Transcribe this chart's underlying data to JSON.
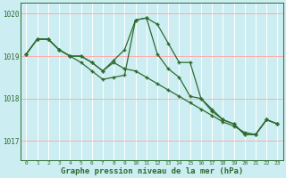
{
  "bg_color": "#cceef2",
  "grid_color_v": "#ffffff",
  "grid_color_h": "#ffaaaa",
  "line_color": "#2d6a2d",
  "marker_color": "#2d6a2d",
  "x": [
    0,
    1,
    2,
    3,
    4,
    5,
    6,
    7,
    8,
    9,
    10,
    11,
    12,
    13,
    14,
    15,
    16,
    17,
    18,
    19,
    20,
    21,
    22,
    23
  ],
  "series1": [
    1019.05,
    1019.4,
    1019.4,
    1019.15,
    1019.0,
    1019.0,
    1018.85,
    1018.65,
    1018.9,
    1019.15,
    1019.85,
    1019.9,
    1019.75,
    1019.3,
    1018.85,
    1018.85,
    1018.0,
    1017.75,
    1017.5,
    1017.4,
    1017.15,
    1017.15,
    1017.5,
    1017.4
  ],
  "series2": [
    1019.05,
    1019.4,
    1019.4,
    1019.15,
    1019.0,
    1018.85,
    1018.65,
    1018.45,
    1018.5,
    1018.55,
    1019.85,
    1019.9,
    1019.05,
    1018.7,
    1018.5,
    1018.05,
    1018.0,
    1017.7,
    1017.5,
    1017.4,
    1017.15,
    1017.15,
    1017.5,
    1017.4
  ],
  "series3": [
    1019.05,
    1019.4,
    1019.4,
    1019.15,
    1019.0,
    1019.0,
    1018.85,
    1018.65,
    1018.85,
    1018.7,
    1018.65,
    1018.5,
    1018.35,
    1018.2,
    1018.05,
    1017.9,
    1017.75,
    1017.6,
    1017.45,
    1017.35,
    1017.2,
    1017.15,
    1017.5,
    1017.4
  ],
  "ylabel_ticks": [
    1017,
    1018,
    1019,
    1020
  ],
  "xlim": [
    -0.5,
    23.5
  ],
  "ylim": [
    1016.55,
    1020.25
  ],
  "xlabel": "Graphe pression niveau de la mer (hPa)"
}
